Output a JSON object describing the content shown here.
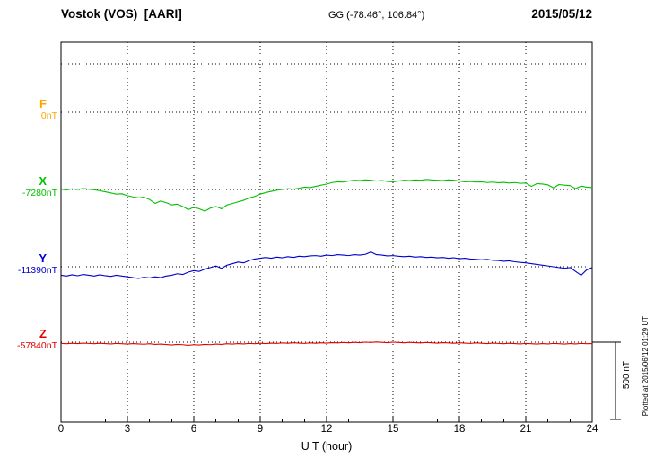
{
  "header": {
    "station": "Vostok (VOS)  [AARI]",
    "coords": "GG (-78.46°, 106.84°)",
    "date": "2015/05/12"
  },
  "axis": {
    "xlabel": "U T (hour)"
  },
  "scalebar": {
    "label": "500 nT"
  },
  "footer_note": "Plotted at 2015/06/12 01:29 UT",
  "chart_data": {
    "type": "line",
    "title": "Vostok (VOS) [AARI] magnetogram 2015/05/12",
    "xlabel": "U T (hour)",
    "x_range_hours": [
      0,
      24
    ],
    "x_tick_labels": [
      "0",
      "3",
      "6",
      "9",
      "12",
      "15",
      "18",
      "21",
      "24"
    ],
    "x_step_hours": 0.25,
    "scale_bar_nT": 500,
    "grid": true,
    "legend_position": "left",
    "series": [
      {
        "name": "F",
        "color": "#ffa500",
        "baseline_label": "0nT",
        "baseline_nT": 0,
        "deviation_nT": []
      },
      {
        "name": "X",
        "color": "#00c000",
        "baseline_label": "-7280nT",
        "baseline_nT": -7280,
        "deviation_nT": [
          2,
          -3,
          4,
          0,
          6,
          2,
          -2,
          -8,
          -15,
          -22,
          -30,
          -28,
          -40,
          -48,
          -55,
          -50,
          -65,
          -90,
          -75,
          -85,
          -100,
          -95,
          -110,
          -130,
          -115,
          -125,
          -140,
          -120,
          -110,
          -125,
          -100,
          -90,
          -80,
          -70,
          -55,
          -45,
          -30,
          -20,
          -12,
          -5,
          0,
          5,
          2,
          8,
          15,
          12,
          20,
          28,
          35,
          45,
          50,
          48,
          55,
          60,
          58,
          62,
          60,
          55,
          58,
          52,
          50,
          55,
          60,
          58,
          62,
          60,
          65,
          62,
          60,
          58,
          62,
          60,
          55,
          50,
          52,
          48,
          50,
          45,
          48,
          44,
          46,
          42,
          45,
          40,
          42,
          20,
          38,
          35,
          30,
          10,
          32,
          28,
          25,
          5,
          22,
          15,
          12
        ]
      },
      {
        "name": "Y",
        "color": "#0000d0",
        "baseline_label": "-11390nT",
        "baseline_nT": -11390,
        "deviation_nT": [
          -55,
          -60,
          -52,
          -58,
          -50,
          -55,
          -60,
          -52,
          -58,
          -62,
          -55,
          -60,
          -65,
          -70,
          -75,
          -68,
          -72,
          -65,
          -70,
          -60,
          -55,
          -45,
          -50,
          -35,
          -25,
          -30,
          -15,
          -5,
          5,
          -10,
          10,
          20,
          30,
          25,
          40,
          50,
          55,
          60,
          55,
          62,
          58,
          65,
          60,
          68,
          65,
          70,
          72,
          68,
          75,
          72,
          78,
          75,
          72,
          78,
          75,
          80,
          95,
          78,
          75,
          70,
          72,
          68,
          65,
          68,
          62,
          65,
          60,
          62,
          58,
          60,
          55,
          58,
          52,
          55,
          50,
          48,
          45,
          48,
          42,
          40,
          35,
          38,
          32,
          28,
          25,
          20,
          15,
          10,
          5,
          0,
          -5,
          -10,
          -5,
          -30,
          -55,
          -20,
          -5
        ]
      },
      {
        "name": "Z",
        "color": "#e00000",
        "baseline_label": "-57840nT",
        "baseline_nT": -57840,
        "deviation_nT": [
          -8,
          -10,
          -7,
          -9,
          -6,
          -8,
          -10,
          -7,
          -9,
          -11,
          -8,
          -10,
          -12,
          -9,
          -11,
          -13,
          -10,
          -14,
          -12,
          -15,
          -18,
          -14,
          -16,
          -20,
          -16,
          -18,
          -14,
          -16,
          -12,
          -14,
          -10,
          -12,
          -9,
          -11,
          -8,
          -10,
          -7,
          -9,
          -6,
          -8,
          -5,
          -7,
          -4,
          -6,
          -8,
          -5,
          -7,
          -4,
          -6,
          -3,
          -5,
          -2,
          -4,
          -1,
          -3,
          0,
          -2,
          1,
          -1,
          -3,
          0,
          -2,
          -4,
          -1,
          -3,
          -5,
          -2,
          -4,
          -6,
          -3,
          -5,
          -7,
          -4,
          -6,
          -8,
          -5,
          -7,
          -9,
          -6,
          -8,
          -10,
          -7,
          -9,
          -11,
          -8,
          -10,
          -12,
          -9,
          -11,
          -8,
          -10,
          -12,
          -9,
          -11,
          -8,
          -10,
          -9
        ]
      }
    ]
  }
}
